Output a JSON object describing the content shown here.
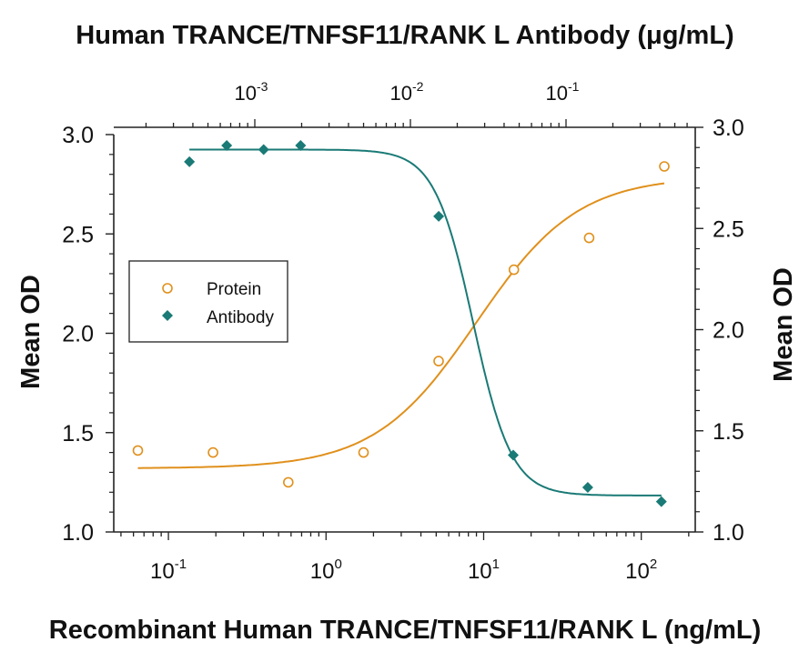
{
  "chart_data": {
    "type": "scatter",
    "title_top": "Human TRANCE/TNFSF11/RANK L Antibody (μg/mL)",
    "xlabel": "Recombinant Human TRANCE/TNFSF11/RANK L (ng/mL)",
    "ylabel_left": "Mean OD",
    "ylabel_right": "Mean OD",
    "x_scale": "log",
    "xlim": [
      0.045,
      220
    ],
    "ylim_left": [
      1.0,
      3.0
    ],
    "ylim_right": [
      1.0,
      3.0
    ],
    "grid": false,
    "legend_position": "center-left",
    "x_ticks": [
      {
        "value": 0.1,
        "base": "10",
        "exp": "-1"
      },
      {
        "value": 1,
        "base": "10",
        "exp": "0"
      },
      {
        "value": 10,
        "base": "10",
        "exp": "1"
      },
      {
        "value": 100,
        "base": "10",
        "exp": "2"
      }
    ],
    "y_ticks_left": [
      "1.0",
      "1.5",
      "2.0",
      "2.5",
      "3.0"
    ],
    "y_ticks_right": [
      "1.0",
      "1.5",
      "2.0",
      "2.5",
      "3.0"
    ],
    "top_axis": {
      "scale": "log",
      "ticks": [
        {
          "value": 0.001,
          "base": "10",
          "exp": "-3"
        },
        {
          "value": 0.01,
          "base": "10",
          "exp": "-2"
        },
        {
          "value": 0.1,
          "base": "10",
          "exp": "-1"
        }
      ]
    },
    "series": [
      {
        "name": "Protein",
        "axis": "bottom-left",
        "marker": "open-circle",
        "color": "#e0901c",
        "x": [
          0.064,
          0.192,
          0.576,
          1.73,
          5.18,
          15.55,
          46.7,
          140
        ],
        "y": [
          1.41,
          1.4,
          1.25,
          1.4,
          1.86,
          2.32,
          2.48,
          2.84
        ],
        "fit": {
          "bottom": 1.32,
          "top": 2.79,
          "ec50": 9.0,
          "hill": 1.35
        }
      },
      {
        "name": "Antibody",
        "axis": "top-right",
        "marker": "filled-diamond",
        "color": "#1a7a76",
        "x": [
          0.00038,
          0.00066,
          0.00114,
          0.00197,
          0.0152,
          0.0458,
          0.138,
          0.41
        ],
        "y": [
          2.83,
          2.91,
          2.89,
          2.91,
          2.56,
          1.38,
          1.22,
          1.15
        ],
        "fit": {
          "bottom": 1.18,
          "top": 2.89,
          "ec50": 0.0253,
          "hill": 3.5
        }
      }
    ]
  }
}
